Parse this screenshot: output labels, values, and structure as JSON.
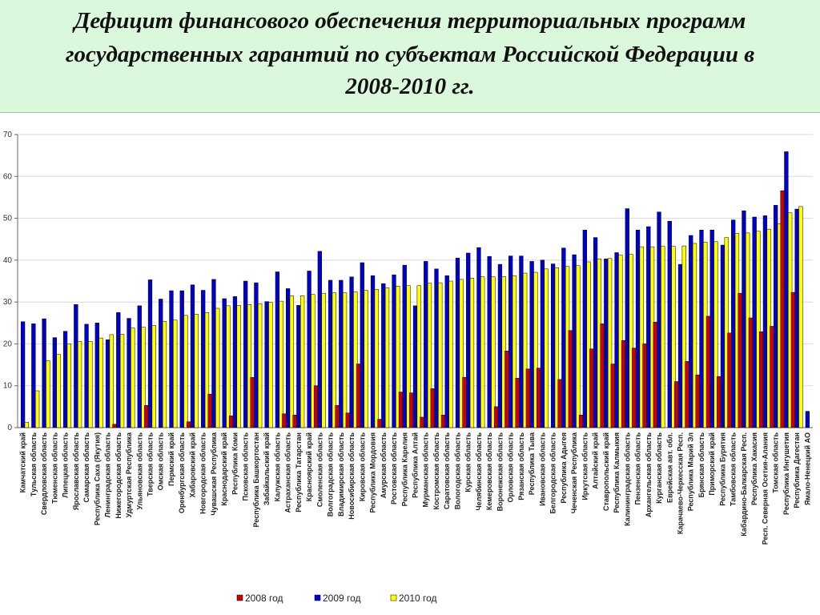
{
  "title": [
    "Дефицит финансового обеспечения территориальных программ",
    "государственных гарантий по субъектам Российской Федерации в",
    "2008-2010 гг."
  ],
  "chart_data": {
    "type": "bar",
    "categories": [
      "Камчатский край",
      "Тульская область",
      "Свердловская область",
      "Тюменская область",
      "Липецкая область",
      "Ярославская область",
      "Самарская область",
      "Республика Саха (Якутия)",
      "Ленинградская область",
      "Нижегородская область",
      "Удмуртская Республика",
      "Ульяновская область",
      "Тверская область",
      "Омская область",
      "Пермский край",
      "Оренбургская область",
      "Хабаровский край",
      "Новгородская область",
      "Чувашская Республика",
      "Краснодарский край",
      "Республика Коми",
      "Псковская область",
      "Республика Башкортостан",
      "Забайкальский край",
      "Калужская область",
      "Астраханская область",
      "Республика Татарстан",
      "Красноярский край",
      "Смоленская область",
      "Волгоградская область",
      "Владимирская область",
      "Новосибирская область",
      "Кировская область",
      "Республика Мордовия",
      "Амурская область",
      "Ростовская область",
      "Республика Карелия",
      "Республика Алтай",
      "Мурманская область",
      "Костромская область",
      "Саратовская область",
      "Вологодская область",
      "Курская область",
      "Челябинская область",
      "Кемеровская область",
      "Воронежская область",
      "Орловская область",
      "Рязанская область",
      "Республика Тыва",
      "Ивановская область",
      "Белгородская область",
      "Республика Адыгея",
      "Чеченская Республика",
      "Иркутская область",
      "Алтайский край",
      "Ставропольский край",
      "Республика Калмыкия",
      "Калининградская область",
      "Пензенская область",
      "Архангельская область",
      "Курганская область",
      "Еврейская авт. обл.",
      "Карачаево-Черкесская Респ.",
      "Республика Марий Эл",
      "Брянская область",
      "Приморский край",
      "Республика Бурятия",
      "Тамбовская область",
      "Кабардино-Балкарская Респ.",
      "Республика Хакасия",
      "Респ. Северная Осетия-Алания",
      "Томская область",
      "Республика Ингушетия",
      "Республика Дагестан",
      "Ямало-Ненецкий АО"
    ],
    "series": [
      {
        "name": "2008 год",
        "color": "#cc0000",
        "values": [
          null,
          null,
          null,
          null,
          null,
          null,
          null,
          null,
          null,
          0.8,
          null,
          null,
          5.3,
          null,
          null,
          null,
          1.4,
          null,
          8,
          null,
          2.8,
          null,
          12,
          null,
          null,
          3.3,
          3,
          null,
          10,
          null,
          5.3,
          3.5,
          15.2,
          null,
          2,
          null,
          8.5,
          8.3,
          2.5,
          9.3,
          3,
          null,
          12,
          null,
          null,
          5,
          18.3,
          11.8,
          14,
          14.2,
          null,
          11.5,
          23.2,
          3,
          18.8,
          24.8,
          15.2,
          20.8,
          19,
          20,
          25.2,
          null,
          11,
          15.8,
          12.6,
          26.6,
          12.2,
          22.6,
          32.1,
          26.2,
          22.9,
          24.2,
          56.6,
          32.3,
          null
        ]
      },
      {
        "name": "2009 год",
        "color": "#0000cc",
        "values": [
          25.3,
          24.8,
          26,
          21.5,
          23,
          29.4,
          24.7,
          25,
          21,
          27.5,
          26.1,
          29.1,
          35.3,
          30.7,
          32.7,
          32.7,
          34.1,
          32.8,
          35.4,
          30.8,
          31.3,
          35,
          34.6,
          30.1,
          37.2,
          33.2,
          29.2,
          37.4,
          42.1,
          35.2,
          35.2,
          36,
          39.4,
          36.3,
          34.4,
          36.5,
          38.8,
          29.1,
          39.7,
          37.9,
          36.3,
          40.5,
          41.7,
          43,
          40.9,
          39,
          41,
          41,
          39.7,
          40,
          39.1,
          42.9,
          41.3,
          47.2,
          45.4,
          40.3,
          41.8,
          52.3,
          47.2,
          48,
          51.5,
          49.3,
          39,
          45.9,
          47.2,
          47.2,
          43.6,
          49.6,
          51.8,
          50.3,
          50.6,
          53.1,
          65.9,
          52.2,
          3.9
        ]
      },
      {
        "name": "2010 год",
        "color": "#ffff00",
        "values": [
          1.3,
          8.8,
          16,
          17.5,
          20,
          20.6,
          20.6,
          21.4,
          22.2,
          22.3,
          23.8,
          24,
          24.4,
          25.4,
          25.7,
          26.8,
          27.1,
          27.5,
          28.5,
          29.1,
          29.2,
          29.4,
          29.6,
          29.9,
          30.2,
          31.5,
          31.5,
          31.8,
          32.1,
          32.2,
          32.2,
          32.4,
          32.8,
          33,
          33.4,
          33.8,
          33.9,
          33.9,
          34.5,
          34.6,
          35,
          35.4,
          35.7,
          36,
          36,
          36.1,
          36.3,
          36.9,
          37.1,
          37.9,
          38.2,
          38.5,
          38.7,
          39.6,
          40.3,
          40.4,
          41.2,
          41.4,
          43.2,
          43.2,
          43.3,
          43.3,
          43.4,
          44,
          44.3,
          44.4,
          45.4,
          46.4,
          46.5,
          46.9,
          47.4,
          48.7,
          51.3,
          52.8,
          null
        ]
      }
    ],
    "ylim": [
      0,
      70
    ],
    "yticks": [
      0,
      10,
      20,
      30,
      40,
      50,
      60,
      70
    ],
    "grid": true
  }
}
